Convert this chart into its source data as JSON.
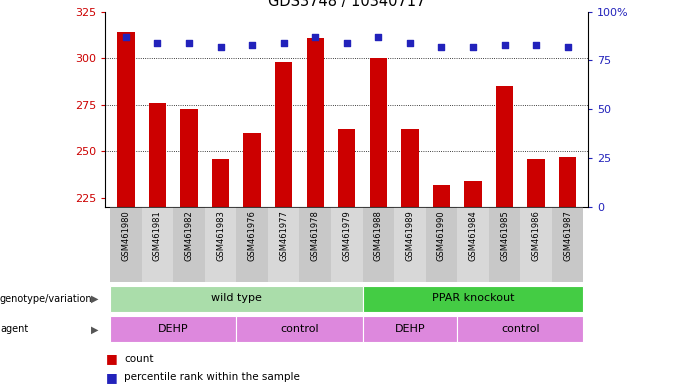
{
  "title": "GDS3748 / 10340717",
  "samples": [
    "GSM461980",
    "GSM461981",
    "GSM461982",
    "GSM461983",
    "GSM461976",
    "GSM461977",
    "GSM461978",
    "GSM461979",
    "GSM461988",
    "GSM461989",
    "GSM461990",
    "GSM461984",
    "GSM461985",
    "GSM461986",
    "GSM461987"
  ],
  "counts": [
    314,
    276,
    273,
    246,
    260,
    298,
    311,
    262,
    300,
    262,
    232,
    234,
    285,
    246,
    247
  ],
  "percentiles": [
    87,
    84,
    84,
    82,
    83,
    84,
    87,
    84,
    87,
    84,
    82,
    82,
    83,
    83,
    82
  ],
  "bar_color": "#cc0000",
  "dot_color": "#2222bb",
  "ylim_left": [
    220,
    325
  ],
  "ylim_right": [
    0,
    100
  ],
  "yticks_left": [
    225,
    250,
    275,
    300,
    325
  ],
  "yticks_right": [
    0,
    25,
    50,
    75,
    100
  ],
  "grid_values": [
    250,
    275,
    300
  ],
  "genotype_groups": [
    {
      "label": "wild type",
      "start": 0,
      "end": 8,
      "color": "#aaddaa"
    },
    {
      "label": "PPAR knockout",
      "start": 8,
      "end": 15,
      "color": "#44cc44"
    }
  ],
  "agent_groups": [
    {
      "label": "DEHP",
      "start": 0,
      "end": 4,
      "color": "#dd88dd"
    },
    {
      "label": "control",
      "start": 4,
      "end": 8,
      "color": "#dd88dd"
    },
    {
      "label": "DEHP",
      "start": 8,
      "end": 11,
      "color": "#dd88dd"
    },
    {
      "label": "control",
      "start": 11,
      "end": 15,
      "color": "#dd88dd"
    }
  ],
  "bar_color_legend": "#cc0000",
  "dot_color_legend": "#2222bb",
  "bar_bottom": 220,
  "background_color": "#ffffff",
  "label_area_color": "#cccccc",
  "n_samples": 15,
  "xlim": [
    -0.65,
    14.65
  ]
}
